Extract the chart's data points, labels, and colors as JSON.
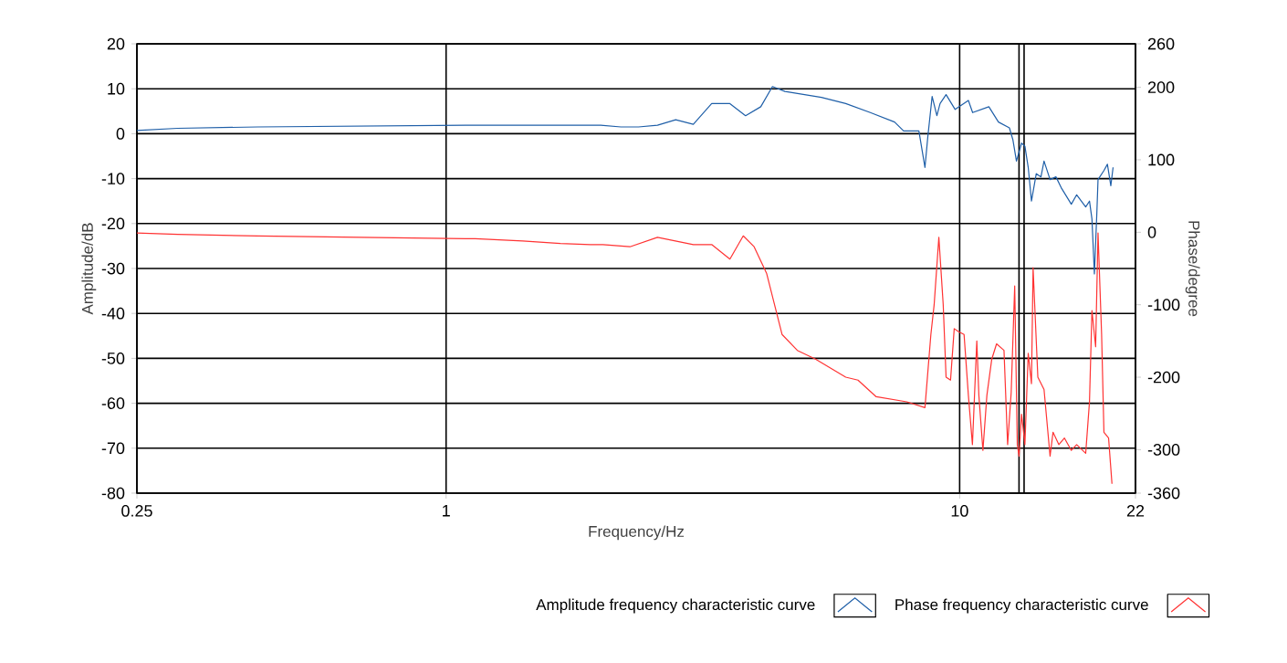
{
  "chart_data": {
    "type": "line",
    "xlabel": "Frequency/Hz",
    "ylabel": "Amplitude/dB",
    "y2label": "Phase/degree",
    "log": "x",
    "grid": true,
    "legend": "bottom right",
    "xlim": [
      0.25,
      22
    ],
    "xticks": [
      0.25,
      1,
      10,
      22
    ],
    "ylim": [
      -80,
      20
    ],
    "yticks": [
      -80,
      -70,
      -60,
      -50,
      -40,
      -30,
      -20,
      -10,
      0,
      10,
      20
    ],
    "y2lim": [
      -360,
      260
    ],
    "y2ticks": [
      -360,
      -300,
      -200,
      -100,
      0,
      100,
      200,
      260
    ],
    "ref_lines": [
      {
        "axis": "x",
        "value": 13.05,
        "color": "#000000"
      },
      {
        "axis": "x",
        "value": 13.35,
        "color": "#000000"
      }
    ],
    "series": [
      {
        "name": "Amplitude frequency characteristic curve",
        "color": "#1f5fa8",
        "x": [
          0.25,
          0.3,
          0.43,
          1.14,
          2.0,
          2.19,
          2.37,
          2.58,
          2.8,
          3.03,
          3.29,
          3.57,
          3.83,
          4.1,
          4.32,
          4.57,
          5.38,
          6.0,
          6.7,
          7.47,
          7.78,
          8.33,
          8.56,
          8.67,
          8.84,
          9.03,
          9.16,
          9.41,
          9.8,
          10.4,
          10.6,
          11.4,
          11.9,
          12.5,
          12.7,
          12.9,
          13.2,
          13.4,
          13.6,
          13.8,
          14.1,
          14.4,
          14.6,
          15.0,
          15.4,
          15.8,
          16.5,
          16.9,
          17.6,
          17.9,
          18.1,
          18.3,
          18.5,
          18.6,
          19.1,
          19.4,
          19.7,
          19.9
        ],
        "values": [
          0.7,
          1.2,
          1.5,
          1.9,
          1.9,
          1.5,
          1.5,
          1.9,
          3.1,
          2.1,
          6.7,
          6.7,
          4.0,
          6.0,
          10.5,
          9.4,
          8.1,
          6.7,
          4.7,
          2.6,
          0.6,
          0.6,
          -7.5,
          -0.7,
          8.3,
          4.0,
          6.7,
          8.7,
          5.4,
          7.4,
          4.7,
          6.0,
          2.6,
          1.3,
          -1.4,
          -6.1,
          -2.1,
          -2.8,
          -7.5,
          -15,
          -8.9,
          -9.6,
          -6.1,
          -10.2,
          -9.6,
          -12.2,
          -15.7,
          -13.6,
          -16.3,
          -15,
          -19,
          -31.2,
          -17.7,
          -10.2,
          -8.2,
          -6.8,
          -11.6,
          -7.5
        ]
      },
      {
        "name": "Phase frequency characteristic curve",
        "color": "#ff3333",
        "axis": "y2",
        "x": [
          0.25,
          0.3,
          0.43,
          0.68,
          1.14,
          1.41,
          1.67,
          1.91,
          2.02,
          2.28,
          2.58,
          3.03,
          3.29,
          3.57,
          3.79,
          3.98,
          4.21,
          4.51,
          4.83,
          5.24,
          6.0,
          6.34,
          6.88,
          7.89,
          8.56,
          8.79,
          8.92,
          9.11,
          9.29,
          9.41,
          9.6,
          9.76,
          9.94,
          10.2,
          10.4,
          10.59,
          10.8,
          10.9,
          11.1,
          11.3,
          11.55,
          11.8,
          12.2,
          12.4,
          12.6,
          12.8,
          12.95,
          13.05,
          13.2,
          13.4,
          13.6,
          13.8,
          13.9,
          14.2,
          14.6,
          15.0,
          15.2,
          15.6,
          16.0,
          16.5,
          16.9,
          17.6,
          17.9,
          18.1,
          18.4,
          18.6,
          18.9,
          19.1,
          19.5,
          19.8
        ],
        "values": [
          -1,
          -3,
          -5,
          -7,
          -9,
          -12,
          -15.5,
          -17,
          -17,
          -20,
          -7,
          -17,
          -17,
          -37,
          -5,
          -20,
          -57,
          -141,
          -163,
          -175,
          -200,
          -204,
          -227,
          -234,
          -242,
          -141,
          -100,
          -7,
          -100,
          -200,
          -204,
          -133,
          -137,
          -141,
          -225,
          -293,
          -150,
          -225,
          -301,
          -225,
          -175,
          -154,
          -163,
          -293,
          -221,
          -74,
          -293,
          -309,
          -251,
          -293,
          -167,
          -209,
          -49,
          -200,
          -217,
          -309,
          -276,
          -293,
          -284,
          -301,
          -293,
          -305,
          -234,
          -108,
          -158,
          -1,
          -141,
          -276,
          -284,
          -347
        ]
      }
    ]
  }
}
